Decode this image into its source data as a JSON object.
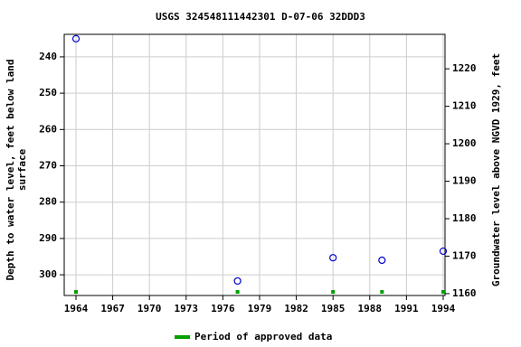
{
  "chart_data": {
    "type": "scatter",
    "title": "USGS 324548111442301 D-07-06 32DDD3",
    "ylabel": [
      "Depth to water level, feet below land",
      "surface"
    ],
    "y2label": "Groundwater level above NGVD 1929, feet",
    "xlim": [
      1963.04,
      1994.15
    ],
    "xticks": [
      1964,
      1967,
      1970,
      1973,
      1976,
      1979,
      1982,
      1985,
      1988,
      1991,
      1994
    ],
    "ylim": [
      305.7,
      233.8
    ],
    "yticks": [
      240,
      250,
      260,
      270,
      280,
      290,
      300
    ],
    "y2lim": [
      1159.5,
      1229.2
    ],
    "y2ticks": [
      1160,
      1170,
      1180,
      1190,
      1200,
      1210,
      1220
    ],
    "grid": true,
    "series": [
      {
        "name": "Depth to water level",
        "color": "#0000cc",
        "x": [
          1964.0,
          1977.2,
          1985.0,
          1989.0,
          1994.0
        ],
        "values": [
          235.0,
          301.7,
          295.3,
          296.0,
          293.5
        ]
      },
      {
        "name": "Period of approved data",
        "color": "#00a000",
        "x": [
          1964.0,
          1977.2,
          1985.0,
          1989.0,
          1994.0
        ]
      }
    ]
  }
}
